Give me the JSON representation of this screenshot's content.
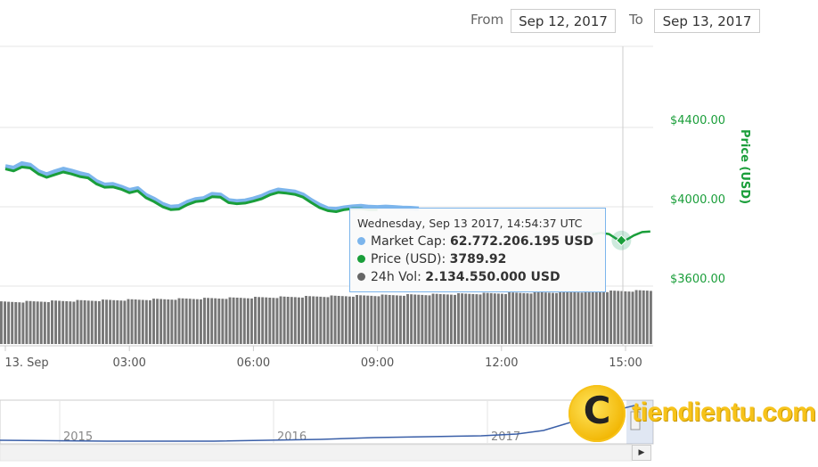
{
  "date_range": {
    "from_label": "From",
    "from_value": "Sep 12, 2017",
    "to_label": "To",
    "to_value": "Sep 13, 2017"
  },
  "chart_data": {
    "type": "line",
    "ylabel": "Price (USD)",
    "y_ticks": [
      "$4400.00",
      "$4000.00",
      "$3600.00"
    ],
    "ylim": [
      3600,
      4400
    ],
    "x_ticks": [
      "13. Sep",
      "03:00",
      "06:00",
      "09:00",
      "12:00",
      "15:00"
    ],
    "x_range_hours": [
      0,
      15.5
    ],
    "series": [
      {
        "name": "Market Cap",
        "color": "#7cb5ec",
        "x": [
          0,
          0.2,
          0.4,
          0.6,
          0.8,
          1.0,
          1.2,
          1.4,
          1.6,
          1.8,
          2.0,
          2.2,
          2.4,
          2.6,
          2.8,
          3.0,
          3.2,
          3.4,
          3.6,
          3.8,
          4.0,
          4.2,
          4.4,
          4.6,
          4.8,
          5.0,
          5.2,
          5.4,
          5.6,
          5.8,
          6.0,
          6.2,
          6.4,
          6.6,
          6.8,
          7.0,
          7.2,
          7.4,
          7.6,
          7.8,
          8.0,
          8.2,
          8.4,
          8.6,
          8.8,
          9.0,
          9.2,
          9.4,
          9.6,
          9.8,
          10.0
        ],
        "values": [
          4163,
          4155,
          4178,
          4170,
          4138,
          4122,
          4137,
          4150,
          4140,
          4128,
          4118,
          4088,
          4070,
          4073,
          4060,
          4043,
          4052,
          4018,
          3998,
          3973,
          3958,
          3962,
          3983,
          3997,
          4002,
          4023,
          4020,
          3992,
          3987,
          3990,
          4000,
          4013,
          4032,
          4045,
          4040,
          4035,
          4020,
          3992,
          3968,
          3950,
          3948,
          3955,
          3960,
          3963,
          3958,
          3957,
          3959,
          3957,
          3954,
          3953,
          3950
        ]
      },
      {
        "name": "Price (USD)",
        "color": "#1a9e3a",
        "x": [
          0,
          0.2,
          0.4,
          0.6,
          0.8,
          1.0,
          1.2,
          1.4,
          1.6,
          1.8,
          2.0,
          2.2,
          2.4,
          2.6,
          2.8,
          3.0,
          3.2,
          3.4,
          3.6,
          3.8,
          4.0,
          4.2,
          4.4,
          4.6,
          4.8,
          5.0,
          5.2,
          5.4,
          5.6,
          5.8,
          6.0,
          6.2,
          6.4,
          6.6,
          6.8,
          7.0,
          7.2,
          7.4,
          7.6,
          7.8,
          8.0,
          8.2,
          8.4,
          8.6,
          8.8,
          9.0,
          14.2,
          14.4,
          14.6,
          14.8,
          15.0,
          15.2,
          15.4,
          15.6
        ],
        "values": [
          4150,
          4140,
          4160,
          4155,
          4125,
          4108,
          4122,
          4135,
          4125,
          4112,
          4105,
          4075,
          4058,
          4060,
          4048,
          4030,
          4040,
          4005,
          3985,
          3960,
          3945,
          3948,
          3970,
          3985,
          3990,
          4010,
          4008,
          3980,
          3975,
          3978,
          3988,
          4000,
          4020,
          4032,
          4028,
          4022,
          4008,
          3980,
          3955,
          3940,
          3935,
          3945,
          3950,
          3950,
          3945,
          3945,
          3820,
          3828,
          3822,
          3795,
          3790,
          3815,
          3832,
          3835
        ]
      }
    ],
    "volume_bar_count": 180,
    "navigator_ticks": [
      "2015",
      "2016",
      "2017"
    ]
  },
  "tooltip": {
    "header": "Wednesday, Sep 13 2017, 14:54:37 UTC",
    "rows": [
      {
        "label": "Market Cap:",
        "value": "62.772.206.195 USD",
        "color": "#7cb5ec"
      },
      {
        "label": "Price (USD):",
        "value": "3789.92",
        "color": "#1a9e3a"
      },
      {
        "label": "24h Vol:",
        "value": "2.134.550.000 USD",
        "color": "#666666"
      }
    ]
  },
  "watermark": {
    "symbol": "C",
    "text": "tiendientu.com"
  },
  "navigator": {
    "scroll_right_glyph": "▶"
  }
}
